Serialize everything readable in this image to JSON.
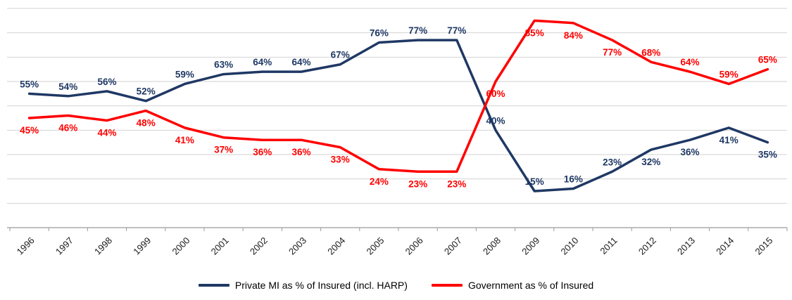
{
  "chart_data": {
    "type": "line",
    "title": "",
    "xlabel": "",
    "ylabel": "",
    "ylim": [
      0,
      90
    ],
    "gridline_interval": 10,
    "grid": "horizontal",
    "legend_position": "bottom",
    "label_format": "percent",
    "categories": [
      "1996",
      "1997",
      "1998",
      "1999",
      "2000",
      "2001",
      "2002",
      "2003",
      "2004",
      "2005",
      "2006",
      "2007",
      "2008",
      "2009",
      "2010",
      "2011",
      "2012",
      "2013",
      "2014",
      "2015"
    ],
    "series": [
      {
        "name": "Private MI as % of Insured (incl. HARP)",
        "color": "#1f3864",
        "values": [
          55,
          54,
          56,
          52,
          59,
          63,
          64,
          64,
          67,
          76,
          77,
          77,
          40,
          15,
          16,
          23,
          32,
          36,
          41,
          35
        ],
        "label_side": [
          "above",
          "above",
          "above",
          "above",
          "above",
          "above",
          "above",
          "above",
          "above",
          "above",
          "above",
          "above",
          "above",
          "above",
          "above",
          "above",
          "below",
          "below",
          "below",
          "below"
        ]
      },
      {
        "name": "Government as % of Insured",
        "color": "#ff0000",
        "values": [
          45,
          46,
          44,
          48,
          41,
          37,
          36,
          36,
          33,
          24,
          23,
          23,
          60,
          85,
          84,
          77,
          68,
          64,
          59,
          65
        ],
        "label_side": [
          "below",
          "below",
          "below",
          "below",
          "below",
          "below",
          "below",
          "below",
          "below",
          "below",
          "below",
          "below",
          "below",
          "below",
          "below",
          "below",
          "above",
          "above",
          "above",
          "above"
        ]
      }
    ]
  },
  "styles": {
    "gridline_color": "#d2d2d2",
    "axis_color": "#9b9b9b",
    "background": "#ffffff"
  }
}
